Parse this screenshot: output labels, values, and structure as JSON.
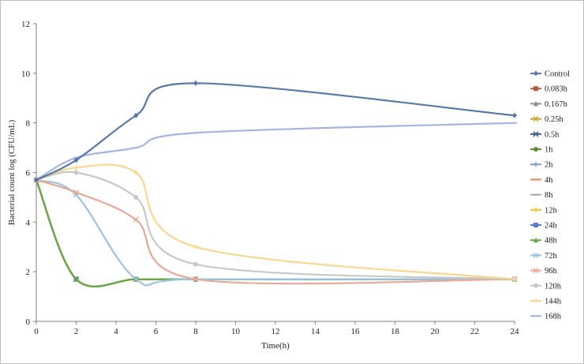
{
  "chart_data": {
    "type": "line",
    "title": "",
    "xlabel": "Time(h)",
    "ylabel": "Bacterial count log (CFU/mL)",
    "xlim": [
      0,
      24
    ],
    "ylim": [
      0,
      12
    ],
    "xticks": [
      "0",
      "2",
      "4",
      "6",
      "8",
      "10",
      "12",
      "14",
      "16",
      "18",
      "20",
      "22",
      "24"
    ],
    "yticks": [
      "0",
      "2",
      "4",
      "6",
      "8",
      "10",
      "12"
    ],
    "grid": false,
    "legend_position": "right",
    "series": [
      {
        "name": "Control",
        "color": "#5878a8",
        "marker": "diamond",
        "x": [
          0,
          2,
          5,
          8,
          24
        ],
        "y": [
          5.7,
          6.5,
          8.3,
          9.6,
          8.3
        ]
      },
      {
        "name": "0.083h",
        "color": "#b35a3c",
        "marker": "square",
        "x": [
          0,
          2,
          5,
          8,
          24
        ],
        "y": [
          5.7,
          1.7,
          1.7,
          1.7,
          1.7
        ]
      },
      {
        "name": "0.167h",
        "color": "#8c8c8c",
        "marker": "triangle",
        "x": [
          0,
          2,
          5,
          8,
          24
        ],
        "y": [
          5.7,
          1.7,
          1.7,
          1.7,
          1.7
        ]
      },
      {
        "name": "0.25h",
        "color": "#c8a224",
        "marker": "x",
        "x": [
          0,
          2,
          5,
          8,
          24
        ],
        "y": [
          5.7,
          1.7,
          1.7,
          1.7,
          1.7
        ]
      },
      {
        "name": "0.5h",
        "color": "#3e5a8c",
        "marker": "x",
        "x": [
          0,
          2,
          5,
          8,
          24
        ],
        "y": [
          5.7,
          1.7,
          1.7,
          1.7,
          1.7
        ]
      },
      {
        "name": "1h",
        "color": "#5f8c3a",
        "marker": "circle",
        "x": [
          0,
          2,
          5,
          8,
          24
        ],
        "y": [
          5.7,
          1.7,
          1.7,
          1.7,
          1.7
        ]
      },
      {
        "name": "2h",
        "color": "#7a9ad0",
        "marker": "plus",
        "x": [
          0,
          2,
          5,
          8,
          24
        ],
        "y": [
          5.7,
          1.7,
          1.7,
          1.7,
          1.7
        ]
      },
      {
        "name": "4h",
        "color": "#e08a5a",
        "marker": "dash",
        "x": [
          0,
          2,
          5,
          8,
          24
        ],
        "y": [
          5.7,
          1.7,
          1.7,
          1.7,
          1.7
        ]
      },
      {
        "name": "8h",
        "color": "#a8a8a8",
        "marker": "dash",
        "x": [
          0,
          2,
          5,
          8,
          24
        ],
        "y": [
          5.7,
          1.7,
          1.7,
          1.7,
          1.7
        ]
      },
      {
        "name": "12h",
        "color": "#f0c030",
        "marker": "plus",
        "x": [
          0,
          2,
          5,
          8,
          24
        ],
        "y": [
          5.7,
          1.7,
          1.7,
          1.7,
          1.7
        ]
      },
      {
        "name": "24h",
        "color": "#5a7ec8",
        "marker": "square",
        "x": [
          0,
          2,
          5,
          8,
          24
        ],
        "y": [
          5.7,
          1.7,
          1.7,
          1.7,
          1.7
        ]
      },
      {
        "name": "48h",
        "color": "#6aaa44",
        "marker": "triangle",
        "x": [
          0,
          2,
          5,
          8,
          24
        ],
        "y": [
          5.7,
          1.7,
          1.7,
          1.7,
          1.7
        ]
      },
      {
        "name": "72h",
        "color": "#9cc4e0",
        "marker": "x",
        "x": [
          0,
          2,
          5,
          8,
          24
        ],
        "y": [
          5.7,
          5.1,
          1.7,
          1.7,
          1.7
        ]
      },
      {
        "name": "96h",
        "color": "#e8a898",
        "marker": "x",
        "x": [
          0,
          2,
          5,
          8,
          24
        ],
        "y": [
          5.7,
          5.2,
          4.1,
          1.7,
          1.7
        ]
      },
      {
        "name": "120h",
        "color": "#c8c8c8",
        "marker": "circle",
        "x": [
          0,
          2,
          5,
          8,
          24
        ],
        "y": [
          5.7,
          6.0,
          5.0,
          2.3,
          1.7
        ]
      },
      {
        "name": "144h",
        "color": "#f8d890",
        "marker": "plus",
        "x": [
          0,
          2,
          5,
          8,
          24
        ],
        "y": [
          5.7,
          6.2,
          6.0,
          3.0,
          1.7
        ]
      },
      {
        "name": "168h",
        "color": "#a8b4e0",
        "marker": "dash",
        "x": [
          0,
          2,
          5,
          8,
          24
        ],
        "y": [
          5.7,
          6.6,
          7.0,
          7.6,
          8.0
        ]
      }
    ]
  }
}
